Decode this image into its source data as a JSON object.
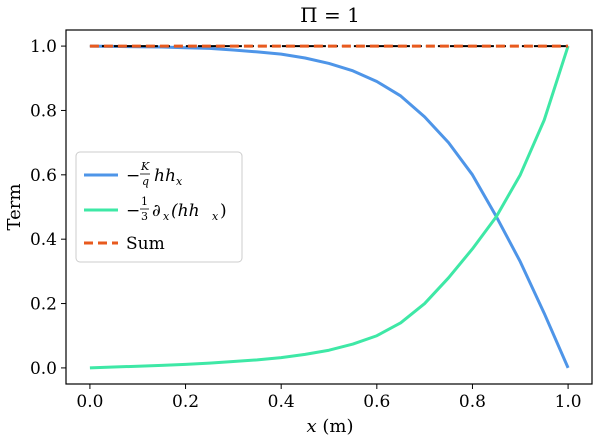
{
  "chart_data": {
    "type": "line",
    "title": "Π = 1",
    "xlabel": "x (m)",
    "ylabel": "Term",
    "xlim": [
      -0.05,
      1.05
    ],
    "ylim": [
      -0.05,
      1.05
    ],
    "xticks": [
      0.0,
      0.2,
      0.4,
      0.6,
      0.8,
      1.0
    ],
    "xtick_labels": [
      "0.0",
      "0.2",
      "0.4",
      "0.6",
      "0.8",
      "1.0"
    ],
    "yticks": [
      0.0,
      0.2,
      0.4,
      0.6,
      0.8,
      1.0
    ],
    "ytick_labels": [
      "0.0",
      "0.2",
      "0.4",
      "0.6",
      "0.8",
      "1.0"
    ],
    "grid": false,
    "legend_position": "center-left",
    "series": [
      {
        "name": "−(K/q) h h_x",
        "color": "#4e95e8",
        "dash": "solid",
        "x": [
          0.0,
          0.05,
          0.1,
          0.15,
          0.2,
          0.25,
          0.3,
          0.35,
          0.4,
          0.45,
          0.5,
          0.55,
          0.6,
          0.65,
          0.7,
          0.75,
          0.8,
          0.85,
          0.9,
          0.95,
          1.0
        ],
        "y": [
          1.0,
          0.999,
          0.998,
          0.997,
          0.995,
          0.993,
          0.988,
          0.982,
          0.975,
          0.963,
          0.946,
          0.923,
          0.89,
          0.845,
          0.78,
          0.7,
          0.6,
          0.47,
          0.33,
          0.17,
          0.0
        ]
      },
      {
        "name": "−(1/3) ∂x(h h_x)",
        "color": "#3ee8a6",
        "dash": "solid",
        "x": [
          0.0,
          0.05,
          0.1,
          0.15,
          0.2,
          0.25,
          0.3,
          0.35,
          0.4,
          0.45,
          0.5,
          0.55,
          0.6,
          0.65,
          0.7,
          0.75,
          0.8,
          0.85,
          0.9,
          0.95,
          1.0
        ],
        "y": [
          0.0,
          0.003,
          0.005,
          0.008,
          0.011,
          0.015,
          0.02,
          0.025,
          0.032,
          0.042,
          0.055,
          0.074,
          0.1,
          0.14,
          0.2,
          0.28,
          0.37,
          0.47,
          0.6,
          0.77,
          1.0
        ]
      },
      {
        "name": "Sum",
        "color": "#e85a1e",
        "dash": "dashed",
        "x": [
          0.0,
          1.0
        ],
        "y": [
          1.0,
          1.0
        ]
      },
      {
        "name": "",
        "color": "#000000",
        "dash": "dashed",
        "x": [
          0.0,
          1.0
        ],
        "y": [
          1.0,
          1.0
        ]
      }
    ],
    "legend": {
      "items": [
        {
          "label_main": "−",
          "frac_num": "K",
          "frac_den": "q",
          "rest": "hh",
          "sub": "x"
        },
        {
          "label_main": "−",
          "frac_num": "1",
          "frac_den": "3",
          "rest": "∂",
          "sub": "x",
          "tail": "(hh",
          "sub2": "x",
          "tail2": ")"
        },
        {
          "label": "Sum"
        }
      ]
    }
  }
}
